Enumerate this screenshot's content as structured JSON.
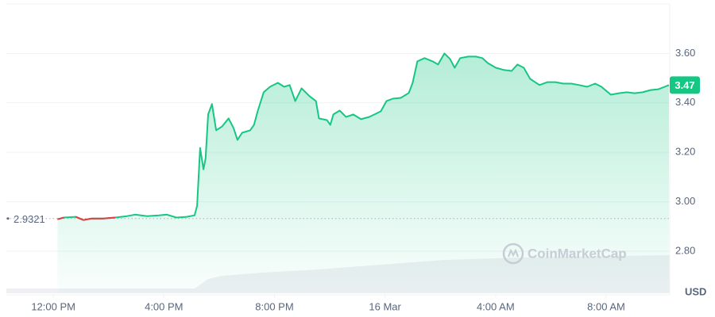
{
  "chart_data": {
    "type": "area",
    "x": [
      12.15,
      12.38,
      12.81,
      13.09,
      13.38,
      13.81,
      14.24,
      14.67,
      14.96,
      15.39,
      15.82,
      16.11,
      16.45,
      16.82,
      17.11,
      17.2,
      17.31,
      17.43,
      17.51,
      17.6,
      17.74,
      17.89,
      18.11,
      18.34,
      18.52,
      18.66,
      18.83,
      19.12,
      19.26,
      19.4,
      19.61,
      19.84,
      20.12,
      20.35,
      20.55,
      20.75,
      20.98,
      21.27,
      21.5,
      21.61,
      21.9,
      22.02,
      22.13,
      22.36,
      22.59,
      22.85,
      23.13,
      23.42,
      23.62,
      23.85,
      24.05,
      24.28,
      24.57,
      24.86,
      25.0,
      25.17,
      25.43,
      25.72,
      25.92,
      26.15,
      26.35,
      26.52,
      26.72,
      27.01,
      27.29,
      27.52,
      27.72,
      28.01,
      28.3,
      28.58,
      28.79,
      29.02,
      29.25,
      29.59,
      29.88,
      30.16,
      30.45,
      30.74,
      31.02,
      31.31,
      31.6,
      31.83,
      32.03,
      32.17,
      32.46,
      32.75,
      33.03,
      33.32,
      33.61,
      33.89,
      34.12,
      34.27
    ],
    "values": [
      2.929,
      2.936,
      2.939,
      2.926,
      2.932,
      2.932,
      2.936,
      2.942,
      2.948,
      2.942,
      2.945,
      2.948,
      2.936,
      2.939,
      2.945,
      2.984,
      3.218,
      3.131,
      3.176,
      3.353,
      3.395,
      3.289,
      3.305,
      3.337,
      3.298,
      3.25,
      3.279,
      3.289,
      3.311,
      3.369,
      3.443,
      3.465,
      3.481,
      3.465,
      3.472,
      3.407,
      3.459,
      3.427,
      3.407,
      3.337,
      3.33,
      3.311,
      3.353,
      3.369,
      3.343,
      3.353,
      3.334,
      3.343,
      3.353,
      3.366,
      3.407,
      3.417,
      3.42,
      3.44,
      3.481,
      3.568,
      3.581,
      3.568,
      3.555,
      3.6,
      3.578,
      3.542,
      3.581,
      3.587,
      3.587,
      3.581,
      3.561,
      3.542,
      3.533,
      3.529,
      3.555,
      3.542,
      3.497,
      3.472,
      3.484,
      3.484,
      3.478,
      3.478,
      3.472,
      3.465,
      3.478,
      3.465,
      3.446,
      3.433,
      3.439,
      3.443,
      3.439,
      3.443,
      3.452,
      3.455,
      3.465,
      3.472
    ],
    "up_color": "#16c784",
    "down_color": "#ea3943",
    "open_price": 2.9321,
    "open_price_label": "2.9321",
    "last_price_label": "3.47",
    "xlim": [
      10.3,
      34.3
    ],
    "xticks": [
      {
        "value": 12,
        "label": "12:00 PM"
      },
      {
        "value": 16,
        "label": "4:00 PM"
      },
      {
        "value": 20,
        "label": "8:00 PM"
      },
      {
        "value": 24,
        "label": "16 Mar"
      },
      {
        "value": 28,
        "label": "4:00 AM"
      },
      {
        "value": 32,
        "label": "8:00 AM"
      }
    ],
    "ylim": [
      2.63,
      3.8
    ],
    "yticks": [
      {
        "value": 2.8,
        "label": "2.80"
      },
      {
        "value": 3.0,
        "label": "3.00"
      },
      {
        "value": 3.2,
        "label": "3.20"
      },
      {
        "value": 3.4,
        "label": "3.40"
      },
      {
        "value": 3.6,
        "label": "3.60"
      }
    ],
    "y_unit": "USD",
    "watermark": "CoinMarketCap",
    "grid": true
  }
}
